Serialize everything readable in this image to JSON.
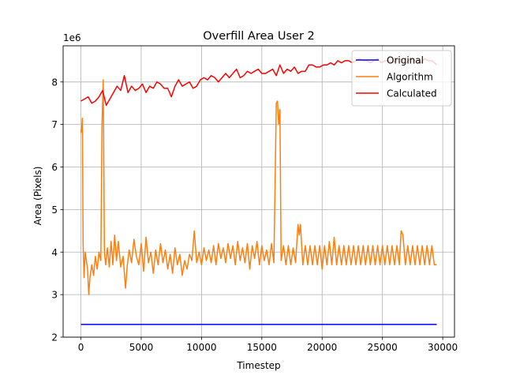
{
  "chart_data": {
    "type": "line",
    "title": "Overfill Area User 2",
    "xlabel": "Timestep",
    "ylabel": "Area (Pixels)",
    "y_scale_label": "1e6",
    "y_multiplier": 1000000,
    "xlim": [
      -1475,
      30975
    ],
    "ylim": [
      2000000,
      8850000
    ],
    "x_ticks": [
      0,
      5000,
      10000,
      15000,
      20000,
      25000,
      30000
    ],
    "y_ticks": [
      2,
      3,
      4,
      5,
      6,
      7,
      8
    ],
    "grid": true,
    "legend_position": "upper right",
    "series": [
      {
        "name": "Original",
        "color": "#0000ff",
        "points": [
          [
            0,
            2300000
          ],
          [
            29500,
            2300000
          ]
        ]
      },
      {
        "name": "Algorithm",
        "color": "#ff7f0e",
        "points": [
          [
            0,
            6800000
          ],
          [
            60,
            6900000
          ],
          [
            120,
            7150000
          ],
          [
            180,
            4200000
          ],
          [
            260,
            3400000
          ],
          [
            350,
            4000000
          ],
          [
            450,
            3800000
          ],
          [
            550,
            3600000
          ],
          [
            650,
            3000000
          ],
          [
            750,
            3400000
          ],
          [
            900,
            3700000
          ],
          [
            1050,
            3450000
          ],
          [
            1200,
            3900000
          ],
          [
            1350,
            3600000
          ],
          [
            1500,
            4000000
          ],
          [
            1650,
            3800000
          ],
          [
            1750,
            7000000
          ],
          [
            1850,
            8050000
          ],
          [
            1950,
            4000000
          ],
          [
            2050,
            3700000
          ],
          [
            2200,
            4100000
          ],
          [
            2350,
            3650000
          ],
          [
            2500,
            4250000
          ],
          [
            2650,
            3700000
          ],
          [
            2800,
            4400000
          ],
          [
            2950,
            3800000
          ],
          [
            3100,
            4250000
          ],
          [
            3300,
            3650000
          ],
          [
            3500,
            3900000
          ],
          [
            3700,
            3150000
          ],
          [
            3850,
            3700000
          ],
          [
            4000,
            4050000
          ],
          [
            4200,
            3750000
          ],
          [
            4400,
            4300000
          ],
          [
            4600,
            3900000
          ],
          [
            4800,
            3700000
          ],
          [
            5000,
            4200000
          ],
          [
            5200,
            3550000
          ],
          [
            5400,
            4350000
          ],
          [
            5600,
            3750000
          ],
          [
            5800,
            4000000
          ],
          [
            6000,
            3500000
          ],
          [
            6200,
            4050000
          ],
          [
            6400,
            3700000
          ],
          [
            6600,
            4200000
          ],
          [
            6800,
            3750000
          ],
          [
            7000,
            4050000
          ],
          [
            7200,
            3600000
          ],
          [
            7400,
            3950000
          ],
          [
            7600,
            3500000
          ],
          [
            7800,
            4100000
          ],
          [
            8000,
            3700000
          ],
          [
            8200,
            3950000
          ],
          [
            8400,
            3450000
          ],
          [
            8600,
            3800000
          ],
          [
            8800,
            3600000
          ],
          [
            9000,
            3950000
          ],
          [
            9200,
            3800000
          ],
          [
            9400,
            4500000
          ],
          [
            9600,
            3750000
          ],
          [
            9800,
            4000000
          ],
          [
            10000,
            3700000
          ],
          [
            10200,
            4100000
          ],
          [
            10400,
            3800000
          ],
          [
            10600,
            4050000
          ],
          [
            10800,
            3750000
          ],
          [
            11000,
            4150000
          ],
          [
            11200,
            3700000
          ],
          [
            11400,
            4200000
          ],
          [
            11600,
            3850000
          ],
          [
            11800,
            4100000
          ],
          [
            12000,
            3750000
          ],
          [
            12200,
            4200000
          ],
          [
            12400,
            3850000
          ],
          [
            12600,
            4150000
          ],
          [
            12800,
            3700000
          ],
          [
            13000,
            4250000
          ],
          [
            13200,
            3800000
          ],
          [
            13400,
            4100000
          ],
          [
            13600,
            3750000
          ],
          [
            13800,
            4200000
          ],
          [
            14000,
            3600000
          ],
          [
            14200,
            4150000
          ],
          [
            14400,
            3850000
          ],
          [
            14600,
            4250000
          ],
          [
            14800,
            3700000
          ],
          [
            15000,
            4150000
          ],
          [
            15200,
            3800000
          ],
          [
            15400,
            4050000
          ],
          [
            15600,
            3700000
          ],
          [
            15800,
            4200000
          ],
          [
            16000,
            3750000
          ],
          [
            16200,
            7500000
          ],
          [
            16300,
            7550000
          ],
          [
            16400,
            7000000
          ],
          [
            16500,
            7350000
          ],
          [
            16600,
            3800000
          ],
          [
            16800,
            4150000
          ],
          [
            17000,
            3700000
          ],
          [
            17200,
            4150000
          ],
          [
            17400,
            3700000
          ],
          [
            17600,
            4100000
          ],
          [
            17800,
            3750000
          ],
          [
            18000,
            4650000
          ],
          [
            18100,
            4400000
          ],
          [
            18200,
            4650000
          ],
          [
            18400,
            3700000
          ],
          [
            18600,
            4150000
          ],
          [
            18800,
            3700000
          ],
          [
            19000,
            4150000
          ],
          [
            19200,
            3700000
          ],
          [
            19400,
            4150000
          ],
          [
            19600,
            3700000
          ],
          [
            19800,
            4150000
          ],
          [
            20000,
            3600000
          ],
          [
            20200,
            4150000
          ],
          [
            20400,
            3700000
          ],
          [
            20600,
            4250000
          ],
          [
            20800,
            3700000
          ],
          [
            21000,
            4350000
          ],
          [
            21200,
            3700000
          ],
          [
            21400,
            4150000
          ],
          [
            21600,
            3700000
          ],
          [
            21800,
            4150000
          ],
          [
            22000,
            3700000
          ],
          [
            22200,
            4150000
          ],
          [
            22400,
            3700000
          ],
          [
            22600,
            4150000
          ],
          [
            22800,
            3700000
          ],
          [
            23000,
            4150000
          ],
          [
            23200,
            3700000
          ],
          [
            23400,
            4150000
          ],
          [
            23600,
            3700000
          ],
          [
            23800,
            4150000
          ],
          [
            24000,
            3700000
          ],
          [
            24200,
            4150000
          ],
          [
            24400,
            3700000
          ],
          [
            24600,
            4150000
          ],
          [
            24800,
            3700000
          ],
          [
            25000,
            4150000
          ],
          [
            25200,
            3700000
          ],
          [
            25400,
            4150000
          ],
          [
            25600,
            3700000
          ],
          [
            25800,
            4150000
          ],
          [
            26000,
            3700000
          ],
          [
            26200,
            4150000
          ],
          [
            26400,
            3700000
          ],
          [
            26550,
            4500000
          ],
          [
            26700,
            4400000
          ],
          [
            26900,
            3700000
          ],
          [
            27100,
            4150000
          ],
          [
            27300,
            3700000
          ],
          [
            27500,
            4150000
          ],
          [
            27700,
            3700000
          ],
          [
            27900,
            4150000
          ],
          [
            28100,
            3700000
          ],
          [
            28300,
            4150000
          ],
          [
            28500,
            3700000
          ],
          [
            28700,
            4150000
          ],
          [
            28900,
            3700000
          ],
          [
            29100,
            4150000
          ],
          [
            29300,
            3700000
          ],
          [
            29500,
            3700000
          ]
        ]
      },
      {
        "name": "Calculated",
        "color": "#ff0000",
        "points": [
          [
            0,
            7550000
          ],
          [
            300,
            7600000
          ],
          [
            600,
            7650000
          ],
          [
            900,
            7500000
          ],
          [
            1200,
            7550000
          ],
          [
            1500,
            7650000
          ],
          [
            1800,
            7800000
          ],
          [
            2100,
            7450000
          ],
          [
            2400,
            7600000
          ],
          [
            2700,
            7750000
          ],
          [
            3000,
            7900000
          ],
          [
            3300,
            7800000
          ],
          [
            3600,
            8150000
          ],
          [
            3900,
            7750000
          ],
          [
            4200,
            7900000
          ],
          [
            4500,
            7800000
          ],
          [
            4800,
            7850000
          ],
          [
            5100,
            7950000
          ],
          [
            5400,
            7750000
          ],
          [
            5700,
            7900000
          ],
          [
            6000,
            7850000
          ],
          [
            6300,
            8000000
          ],
          [
            6600,
            7950000
          ],
          [
            6900,
            7850000
          ],
          [
            7200,
            7850000
          ],
          [
            7500,
            7650000
          ],
          [
            7800,
            7900000
          ],
          [
            8100,
            8050000
          ],
          [
            8400,
            7900000
          ],
          [
            8700,
            7950000
          ],
          [
            9000,
            8000000
          ],
          [
            9300,
            7850000
          ],
          [
            9600,
            7900000
          ],
          [
            9900,
            8050000
          ],
          [
            10200,
            8100000
          ],
          [
            10500,
            8050000
          ],
          [
            10800,
            8150000
          ],
          [
            11100,
            8100000
          ],
          [
            11400,
            8000000
          ],
          [
            11700,
            8100000
          ],
          [
            12000,
            8200000
          ],
          [
            12300,
            8100000
          ],
          [
            12600,
            8200000
          ],
          [
            12900,
            8300000
          ],
          [
            13200,
            8100000
          ],
          [
            13500,
            8150000
          ],
          [
            13800,
            8250000
          ],
          [
            14100,
            8200000
          ],
          [
            14400,
            8250000
          ],
          [
            14700,
            8300000
          ],
          [
            15000,
            8200000
          ],
          [
            15300,
            8200000
          ],
          [
            15600,
            8250000
          ],
          [
            15900,
            8300000
          ],
          [
            16200,
            8150000
          ],
          [
            16500,
            8400000
          ],
          [
            16800,
            8200000
          ],
          [
            17100,
            8300000
          ],
          [
            17400,
            8250000
          ],
          [
            17700,
            8350000
          ],
          [
            18000,
            8200000
          ],
          [
            18300,
            8250000
          ],
          [
            18600,
            8250000
          ],
          [
            18900,
            8400000
          ],
          [
            19200,
            8400000
          ],
          [
            19500,
            8350000
          ],
          [
            19800,
            8350000
          ],
          [
            20100,
            8400000
          ],
          [
            20400,
            8400000
          ],
          [
            20700,
            8450000
          ],
          [
            21000,
            8400000
          ],
          [
            21300,
            8500000
          ],
          [
            21600,
            8450000
          ],
          [
            21900,
            8500000
          ],
          [
            22200,
            8500000
          ],
          [
            22500,
            8450000
          ],
          [
            22800,
            8500000
          ],
          [
            23100,
            8550000
          ],
          [
            23400,
            8500000
          ],
          [
            23700,
            8500000
          ],
          [
            24000,
            8450000
          ],
          [
            24300,
            8500000
          ],
          [
            24600,
            8550000
          ],
          [
            24900,
            8450000
          ],
          [
            25200,
            8500000
          ],
          [
            25500,
            8500000
          ],
          [
            25800,
            8450000
          ],
          [
            26100,
            8500000
          ],
          [
            26400,
            8550000
          ],
          [
            26700,
            8500000
          ],
          [
            27000,
            8450000
          ],
          [
            27300,
            8550000
          ],
          [
            27600,
            8500000
          ],
          [
            27900,
            8500000
          ],
          [
            28200,
            8450000
          ],
          [
            28500,
            8550000
          ],
          [
            28800,
            8500000
          ],
          [
            29100,
            8500000
          ],
          [
            29500,
            8400000
          ]
        ]
      }
    ]
  }
}
